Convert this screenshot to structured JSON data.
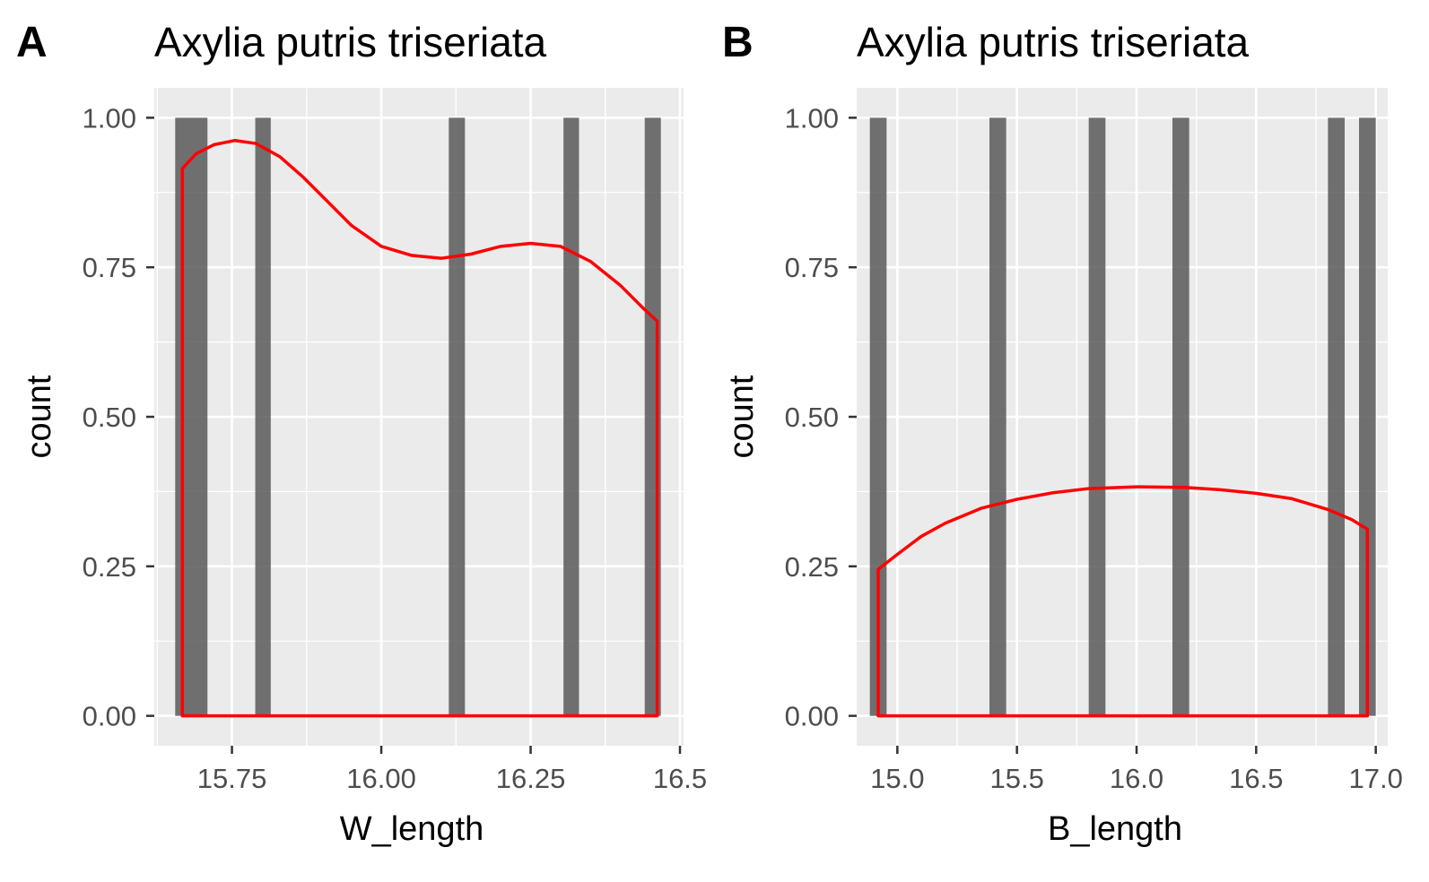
{
  "chart_data": [
    {
      "panel_tag": "A",
      "type": "bar",
      "title": "Axylia putris triseriata",
      "xlabel": "W_length",
      "ylabel": "count",
      "xlim": [
        15.62,
        16.5
      ],
      "ylim": [
        0,
        1.0
      ],
      "x_ticks": [
        "15.75",
        "16.00",
        "16.25",
        "16.5"
      ],
      "x_tick_values": [
        15.75,
        16.0,
        16.25,
        16.5
      ],
      "y_ticks": [
        "0.00",
        "0.25",
        "0.50",
        "0.75",
        "1.00"
      ],
      "y_tick_values": [
        0,
        0.25,
        0.5,
        0.75,
        1.0
      ],
      "grid": true,
      "bars": [
        {
          "x0": 15.655,
          "x1": 15.709,
          "value": 1
        },
        {
          "x0": 15.789,
          "x1": 15.815,
          "value": 1
        },
        {
          "x0": 16.113,
          "x1": 16.14,
          "value": 1
        },
        {
          "x0": 16.305,
          "x1": 16.331,
          "value": 1
        },
        {
          "x0": 16.441,
          "x1": 16.468,
          "value": 1
        }
      ],
      "density": {
        "color": "#ff0000",
        "x": [
          15.667,
          15.69,
          15.72,
          15.755,
          15.79,
          15.83,
          15.87,
          15.91,
          15.95,
          16.0,
          16.05,
          16.1,
          16.15,
          16.2,
          16.25,
          16.3,
          16.35,
          16.4,
          16.44,
          16.462
        ],
        "y": [
          0.915,
          0.94,
          0.955,
          0.962,
          0.957,
          0.935,
          0.9,
          0.86,
          0.82,
          0.785,
          0.77,
          0.765,
          0.772,
          0.785,
          0.79,
          0.785,
          0.76,
          0.72,
          0.68,
          0.66
        ]
      }
    },
    {
      "panel_tag": "B",
      "type": "bar",
      "title": "Axylia putris triseriata",
      "xlabel": "B_length",
      "ylabel": "count",
      "xlim": [
        14.8,
        17.0
      ],
      "ylim": [
        0,
        1.0
      ],
      "x_ticks": [
        "15.0",
        "15.5",
        "16.0",
        "16.5",
        "17.0"
      ],
      "x_tick_values": [
        15.0,
        15.5,
        16.0,
        16.5,
        17.0
      ],
      "y_ticks": [
        "0.00",
        "0.25",
        "0.50",
        "0.75",
        "1.00"
      ],
      "y_tick_values": [
        0,
        0.25,
        0.5,
        0.75,
        1.0
      ],
      "grid": true,
      "bars": [
        {
          "x0": 14.885,
          "x1": 14.955,
          "value": 1
        },
        {
          "x0": 15.385,
          "x1": 15.455,
          "value": 1
        },
        {
          "x0": 15.8,
          "x1": 15.87,
          "value": 1
        },
        {
          "x0": 16.15,
          "x1": 16.22,
          "value": 1
        },
        {
          "x0": 16.8,
          "x1": 16.87,
          "value": 1
        },
        {
          "x0": 16.93,
          "x1": 17.0,
          "value": 1
        }
      ],
      "density": {
        "color": "#ff0000",
        "x": [
          14.92,
          15.0,
          15.1,
          15.2,
          15.35,
          15.5,
          15.65,
          15.8,
          16.0,
          16.2,
          16.35,
          16.5,
          16.65,
          16.8,
          16.9,
          16.965
        ],
        "y": [
          0.245,
          0.27,
          0.3,
          0.322,
          0.347,
          0.362,
          0.373,
          0.38,
          0.383,
          0.382,
          0.378,
          0.372,
          0.363,
          0.345,
          0.328,
          0.312
        ]
      }
    }
  ]
}
